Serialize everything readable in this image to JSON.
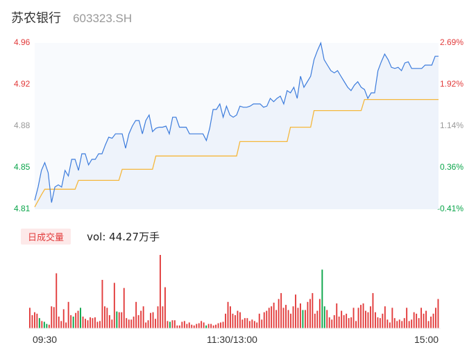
{
  "header": {
    "name": "苏农银行",
    "code": "603323.SH"
  },
  "chart_data": [
    {
      "type": "line",
      "title": "",
      "price_range": [
        4.81,
        4.96
      ],
      "pct_range": [
        -0.41,
        2.69
      ],
      "left_ticks": [
        "4.96",
        "4.92",
        "4.88",
        "4.85",
        "4.81"
      ],
      "right_ticks": [
        "2.69%",
        "1.92%",
        "1.14%",
        "0.36%",
        "-0.41%"
      ],
      "series": [
        {
          "role": "price",
          "x": [
            0,
            1,
            2,
            3,
            4,
            5,
            6,
            7,
            8,
            9,
            10,
            11,
            12,
            13,
            14,
            15,
            16,
            17,
            18,
            19,
            20,
            21,
            22,
            23,
            24,
            25,
            26,
            27,
            28,
            29,
            30,
            31,
            32,
            33,
            34,
            35,
            36,
            37,
            38,
            39,
            40,
            41,
            42,
            43,
            44,
            45,
            46,
            47,
            48,
            49,
            50,
            51,
            52,
            53,
            54,
            55,
            56,
            57,
            58,
            59,
            60,
            61,
            62,
            63,
            64,
            65,
            66,
            67,
            68,
            69,
            70,
            71,
            72,
            73,
            74,
            75,
            76,
            77,
            78,
            79,
            80,
            81,
            82,
            83,
            84,
            85,
            86,
            87,
            88,
            89,
            90,
            91,
            92,
            93,
            94,
            95,
            96,
            97,
            98,
            99,
            100,
            101,
            102,
            103,
            104,
            105,
            106,
            107,
            108,
            109,
            110,
            111,
            112,
            113,
            114,
            115,
            116,
            117,
            118,
            119,
            120
          ],
          "values": [
            4.818,
            4.83,
            4.845,
            4.852,
            4.843,
            4.816,
            4.83,
            4.832,
            4.83,
            4.845,
            4.84,
            4.855,
            4.855,
            4.845,
            4.86,
            4.86,
            4.85,
            4.855,
            4.855,
            4.86,
            4.86,
            4.868,
            4.875,
            4.874,
            4.878,
            4.878,
            4.878,
            4.865,
            4.878,
            4.885,
            4.89,
            4.89,
            4.878,
            4.89,
            4.895,
            4.88,
            4.883,
            4.884,
            4.884,
            4.885,
            4.878,
            4.893,
            4.893,
            4.884,
            4.884,
            4.884,
            4.878,
            4.878,
            4.878,
            4.878,
            4.878,
            4.872,
            4.883,
            4.9,
            4.9,
            4.905,
            4.893,
            4.903,
            4.895,
            4.893,
            4.895,
            4.903,
            4.902,
            4.902,
            4.903,
            4.905,
            4.905,
            4.905,
            4.902,
            4.903,
            4.91,
            4.907,
            4.91,
            4.912,
            4.905,
            4.917,
            4.915,
            4.92,
            4.91,
            4.93,
            4.92,
            4.925,
            4.93,
            4.945,
            4.953,
            4.96,
            4.945,
            4.94,
            4.935,
            4.933,
            4.935,
            4.93,
            4.925,
            4.92,
            4.917,
            4.922,
            4.925,
            4.92,
            4.918,
            4.91,
            4.915,
            4.915,
            4.935,
            4.943,
            4.95,
            4.945,
            4.938,
            4.937,
            4.938,
            4.935,
            4.942,
            4.943,
            4.937,
            4.937,
            4.937,
            4.937,
            4.94,
            4.94,
            4.94,
            4.948,
            4.948
          ]
        },
        {
          "role": "average",
          "x": [
            0,
            2,
            3,
            12,
            13,
            25,
            26,
            35,
            36,
            60,
            61,
            75,
            76,
            82,
            83,
            97,
            98,
            120
          ],
          "values": [
            4.812,
            4.823,
            4.828,
            4.828,
            4.836,
            4.836,
            4.846,
            4.846,
            4.858,
            4.858,
            4.871,
            4.871,
            4.884,
            4.884,
            4.899,
            4.899,
            4.909,
            4.909
          ]
        }
      ]
    },
    {
      "type": "bar",
      "title": "",
      "x_ticks": [
        "09:30",
        "11:30/13:00",
        "15:00"
      ],
      "volume_label": "日成交量",
      "volume_text": "vol: 44.27万手",
      "series": [
        {
          "name": "",
          "values": [
            28,
            18,
            22,
            20,
            14,
            10,
            9,
            6,
            5,
            30,
            29,
            75,
            16,
            10,
            26,
            8,
            36,
            18,
            16,
            21,
            24,
            28,
            16,
            13,
            11,
            15,
            14,
            15,
            9,
            10,
            66,
            30,
            28,
            18,
            12,
            62,
            23,
            22,
            22,
            55,
            14,
            12,
            12,
            16,
            36,
            18,
            24,
            30,
            8,
            11,
            21,
            22,
            13,
            30,
            100,
            30,
            56,
            10,
            9,
            11,
            11,
            4,
            4,
            9,
            10,
            6,
            8,
            5,
            4,
            6,
            7,
            10,
            8,
            4,
            6,
            6,
            4,
            5,
            7,
            8,
            9,
            20,
            36,
            30,
            20,
            18,
            24,
            22,
            12,
            14,
            14,
            10,
            12,
            10,
            8,
            20,
            12,
            22,
            24,
            28,
            30,
            35,
            25,
            40,
            48,
            28,
            32,
            25,
            20,
            30,
            46,
            28,
            34,
            25,
            25,
            36,
            40,
            48,
            20,
            24,
            40,
            80,
            30,
            25,
            15,
            12,
            18,
            34,
            16,
            24,
            18,
            20,
            14,
            15,
            28,
            10,
            28,
            32,
            34,
            24,
            22,
            30,
            48,
            22,
            15,
            14,
            20,
            30,
            12,
            8,
            28,
            14,
            10,
            12,
            10,
            14,
            28,
            10,
            12,
            22,
            20,
            14,
            28,
            20,
            24,
            10,
            16,
            20,
            28,
            40
          ]
        }
      ]
    }
  ],
  "colors": {
    "price_line": "#3b7bdc",
    "average_line": "#f5b73b",
    "up": "#e23b3b",
    "down": "#0aa54a",
    "area_fill": "#eef3fb"
  }
}
